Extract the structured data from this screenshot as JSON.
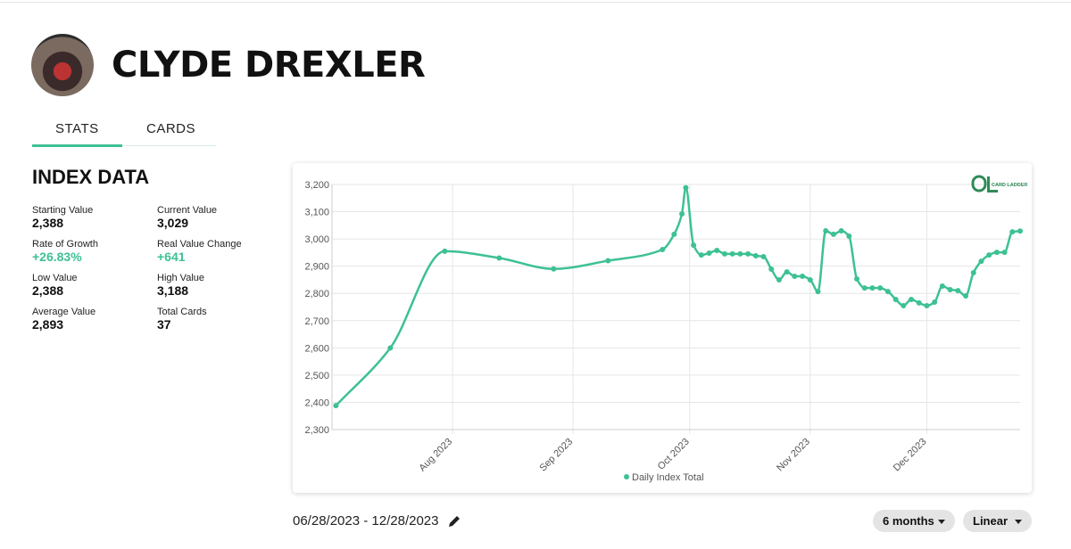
{
  "header": {
    "title": "CLYDE DREXLER"
  },
  "tabs": [
    "STATS",
    "CARDS"
  ],
  "index_data": {
    "heading": "INDEX DATA",
    "items": [
      {
        "label": "Starting Value",
        "value": "2,388"
      },
      {
        "label": "Current Value",
        "value": "3,029"
      },
      {
        "label": "Rate of Growth",
        "value": "+26.83%"
      },
      {
        "label": "Real Value Change",
        "value": "+641"
      },
      {
        "label": "Low Value",
        "value": "2,388"
      },
      {
        "label": "High Value",
        "value": "3,188"
      },
      {
        "label": "Average Value",
        "value": "2,893"
      },
      {
        "label": "Total Cards",
        "value": "37"
      }
    ]
  },
  "logo": "CARD LADDER",
  "chart_data": {
    "type": "line",
    "x": [
      "2023-07-02",
      "2023-07-16",
      "2023-07-30",
      "2023-08-13",
      "2023-08-27",
      "2023-09-10",
      "2023-09-24",
      "2023-09-27",
      "2023-09-29",
      "2023-09-30",
      "2023-10-02",
      "2023-10-04",
      "2023-10-06",
      "2023-10-08",
      "2023-10-10",
      "2023-10-12",
      "2023-10-14",
      "2023-10-16",
      "2023-10-18",
      "2023-10-20",
      "2023-10-22",
      "2023-10-24",
      "2023-10-26",
      "2023-10-28",
      "2023-10-30",
      "2023-11-01",
      "2023-11-03",
      "2023-11-05",
      "2023-11-07",
      "2023-11-09",
      "2023-11-11",
      "2023-11-13",
      "2023-11-15",
      "2023-11-17",
      "2023-11-19",
      "2023-11-21",
      "2023-11-23",
      "2023-11-25",
      "2023-11-27",
      "2023-11-29",
      "2023-12-01",
      "2023-12-03",
      "2023-12-05",
      "2023-12-07",
      "2023-12-09",
      "2023-12-11",
      "2023-12-13",
      "2023-12-15",
      "2023-12-17",
      "2023-12-19",
      "2023-12-21",
      "2023-12-23",
      "2023-12-25"
    ],
    "series": [
      {
        "name": "Daily Index Total",
        "color": "#3dc192",
        "values": [
          2388,
          2600,
          2955,
          2930,
          2890,
          2920,
          2961,
          3017,
          3092,
          3188,
          2977,
          2941,
          2948,
          2958,
          2945,
          2945,
          2945,
          2945,
          2938,
          2935,
          2889,
          2850,
          2879,
          2863,
          2863,
          2850,
          2807,
          3030,
          3017,
          3030,
          3010,
          2853,
          2820,
          2820,
          2820,
          2807,
          2778,
          2755,
          2778,
          2765,
          2755,
          2768,
          2827,
          2814,
          2810,
          2791,
          2876,
          2918,
          2941,
          2951,
          2951,
          3026,
          3029
        ]
      }
    ],
    "xlim": [
      "2023-07-01",
      "2023-12-25"
    ],
    "xticks": [
      {
        "value": "2023-08-01",
        "label": "Aug 2023"
      },
      {
        "value": "2023-09-01",
        "label": "Sep 2023"
      },
      {
        "value": "2023-10-01",
        "label": "Oct 2023"
      },
      {
        "value": "2023-11-01",
        "label": "Nov 2023"
      },
      {
        "value": "2023-12-01",
        "label": "Dec 2023"
      }
    ],
    "ylim": [
      2300,
      3200
    ],
    "yticks": [
      {
        "value": 2300,
        "label": "2,300"
      },
      {
        "value": 2400,
        "label": "2,400"
      },
      {
        "value": 2500,
        "label": "2,500"
      },
      {
        "value": 2600,
        "label": "2,600"
      },
      {
        "value": 2700,
        "label": "2,700"
      },
      {
        "value": 2800,
        "label": "2,800"
      },
      {
        "value": 2900,
        "label": "2,900"
      },
      {
        "value": 3000,
        "label": "3,000"
      },
      {
        "value": 3100,
        "label": "3,100"
      },
      {
        "value": 3200,
        "label": "3,200"
      }
    ],
    "grid": true,
    "legend": "bottom"
  },
  "date_range": "06/28/2023 - 12/28/2023",
  "controls": [
    "6 months",
    "Linear"
  ]
}
